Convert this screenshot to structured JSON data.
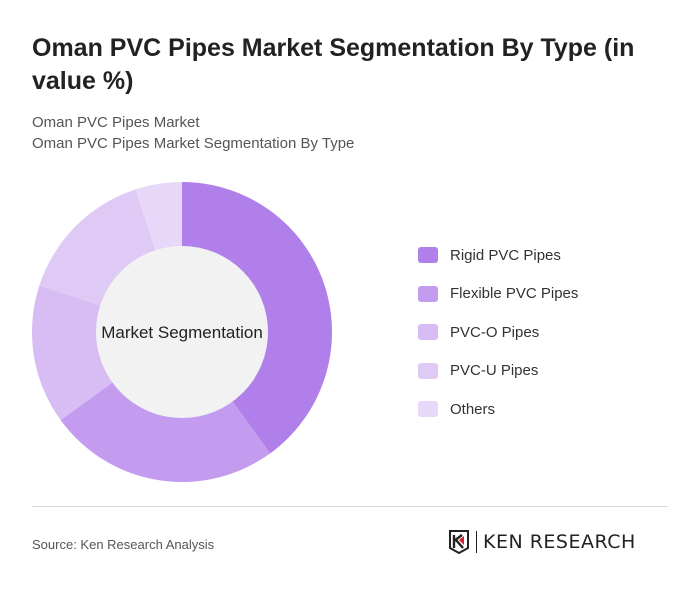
{
  "title": "Oman PVC Pipes Market Segmentation By Type (in value %)",
  "subtitle1": "Oman PVC Pipes Market",
  "subtitle2": "Oman PVC Pipes Market Segmentation By Type",
  "chart_data": {
    "type": "pie",
    "variant": "donut",
    "center_label": "Market Segmentation",
    "categories": [
      "Rigid PVC Pipes",
      "Flexible PVC Pipes",
      "PVC-O Pipes",
      "PVC-U Pipes",
      "Others"
    ],
    "values": [
      40,
      25,
      15,
      15,
      5
    ],
    "colors": [
      "#b07fea",
      "#c49cef",
      "#d7bdf4",
      "#dfcaf5",
      "#e7d7f8"
    ],
    "legend_position": "right"
  },
  "source": "Source: Ken Research Analysis",
  "logo": {
    "text": "KEN RESEARCH"
  }
}
